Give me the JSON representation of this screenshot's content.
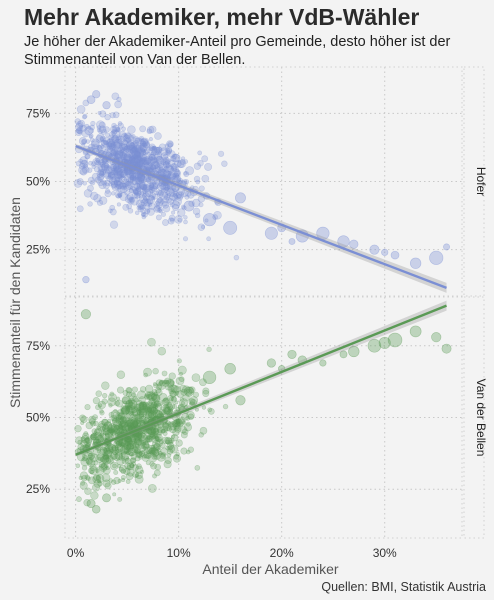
{
  "title": "Mehr Akademiker, mehr VdB-Wähler",
  "subtitle": "Je höher der Akademiker-Anteil pro Gemeinde, desto höher ist der Stimmenanteil von Van der Bellen.",
  "source": "Quellen: BMI, Statistik Austria",
  "chart_data": {
    "type": "scatter",
    "xlabel": "Anteil der Akademiker",
    "ylabel": "Stimmenanteil für den Kandidaten",
    "x_ticks": [
      "0%",
      "10%",
      "20%",
      "30%"
    ],
    "y_ticks": [
      "25%",
      "50%",
      "75%"
    ],
    "xlim": [
      -0.02,
      0.375
    ],
    "ylim": [
      0.08,
      0.92
    ],
    "grid": true,
    "facets": [
      {
        "name": "Hofer",
        "color": "#7b8fd4",
        "trend": {
          "start": [
            0.0,
            0.63
          ],
          "end": [
            0.36,
            0.11
          ]
        },
        "cloud": {
          "x_mean": 0.06,
          "y_mean": 0.55
        },
        "points": [
          {
            "x": 0.01,
            "y": 0.14
          },
          {
            "x": 0.015,
            "y": 0.8
          },
          {
            "x": 0.02,
            "y": 0.82
          },
          {
            "x": 0.03,
            "y": 0.78
          },
          {
            "x": 0.11,
            "y": 0.41
          },
          {
            "x": 0.13,
            "y": 0.36
          },
          {
            "x": 0.15,
            "y": 0.33
          },
          {
            "x": 0.16,
            "y": 0.44
          },
          {
            "x": 0.19,
            "y": 0.31
          },
          {
            "x": 0.2,
            "y": 0.33
          },
          {
            "x": 0.21,
            "y": 0.28
          },
          {
            "x": 0.22,
            "y": 0.3
          },
          {
            "x": 0.24,
            "y": 0.31
          },
          {
            "x": 0.26,
            "y": 0.28
          },
          {
            "x": 0.27,
            "y": 0.27
          },
          {
            "x": 0.29,
            "y": 0.25
          },
          {
            "x": 0.3,
            "y": 0.24
          },
          {
            "x": 0.31,
            "y": 0.23
          },
          {
            "x": 0.33,
            "y": 0.2
          },
          {
            "x": 0.35,
            "y": 0.22
          },
          {
            "x": 0.36,
            "y": 0.26
          }
        ]
      },
      {
        "name": "Van der Bellen",
        "color": "#5a9a55",
        "trend": {
          "start": [
            0.0,
            0.37
          ],
          "end": [
            0.36,
            0.89
          ]
        },
        "cloud": {
          "x_mean": 0.06,
          "y_mean": 0.45
        },
        "points": [
          {
            "x": 0.01,
            "y": 0.86
          },
          {
            "x": 0.015,
            "y": 0.2
          },
          {
            "x": 0.02,
            "y": 0.18
          },
          {
            "x": 0.03,
            "y": 0.22
          },
          {
            "x": 0.11,
            "y": 0.59
          },
          {
            "x": 0.13,
            "y": 0.64
          },
          {
            "x": 0.15,
            "y": 0.67
          },
          {
            "x": 0.16,
            "y": 0.56
          },
          {
            "x": 0.19,
            "y": 0.69
          },
          {
            "x": 0.2,
            "y": 0.67
          },
          {
            "x": 0.21,
            "y": 0.72
          },
          {
            "x": 0.22,
            "y": 0.7
          },
          {
            "x": 0.24,
            "y": 0.69
          },
          {
            "x": 0.26,
            "y": 0.72
          },
          {
            "x": 0.27,
            "y": 0.73
          },
          {
            "x": 0.29,
            "y": 0.75
          },
          {
            "x": 0.3,
            "y": 0.76
          },
          {
            "x": 0.31,
            "y": 0.77
          },
          {
            "x": 0.33,
            "y": 0.8
          },
          {
            "x": 0.35,
            "y": 0.78
          },
          {
            "x": 0.36,
            "y": 0.74
          }
        ]
      }
    ]
  }
}
